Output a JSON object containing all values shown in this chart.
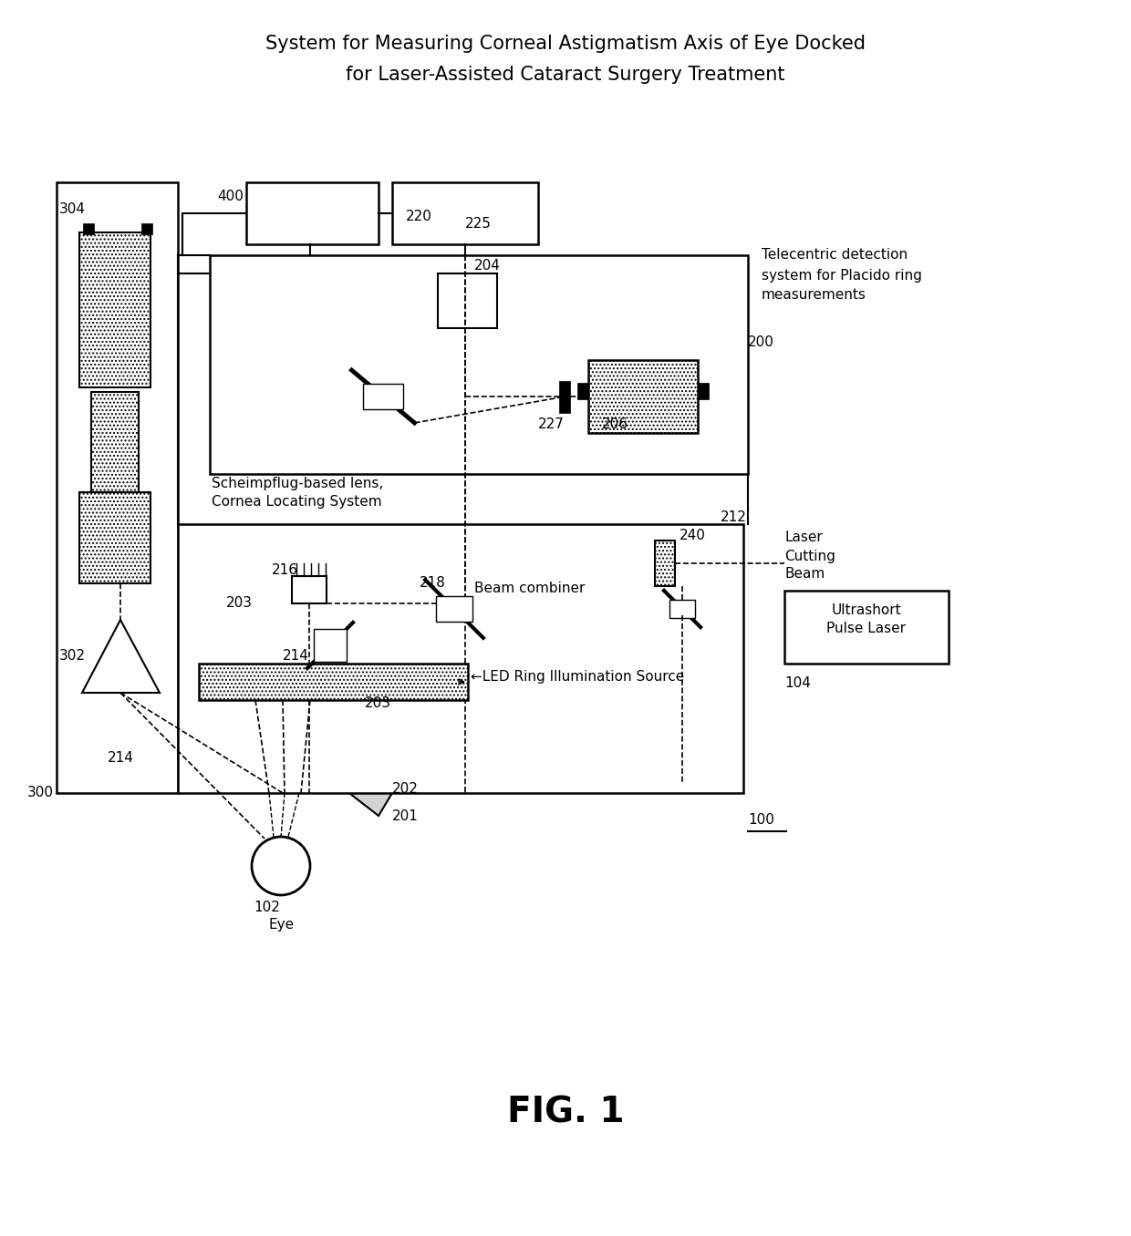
{
  "title_line1": "System for Measuring Corneal Astigmatism Axis of Eye Docked",
  "title_line2": "for Laser-Assisted Cataract Surgery Treatment",
  "fig_label": "FIG. 1",
  "fig_number": "100",
  "background_color": "#ffffff",
  "title_fontsize": 15,
  "label_fontsize": 11,
  "annotation_fontsize": 11
}
